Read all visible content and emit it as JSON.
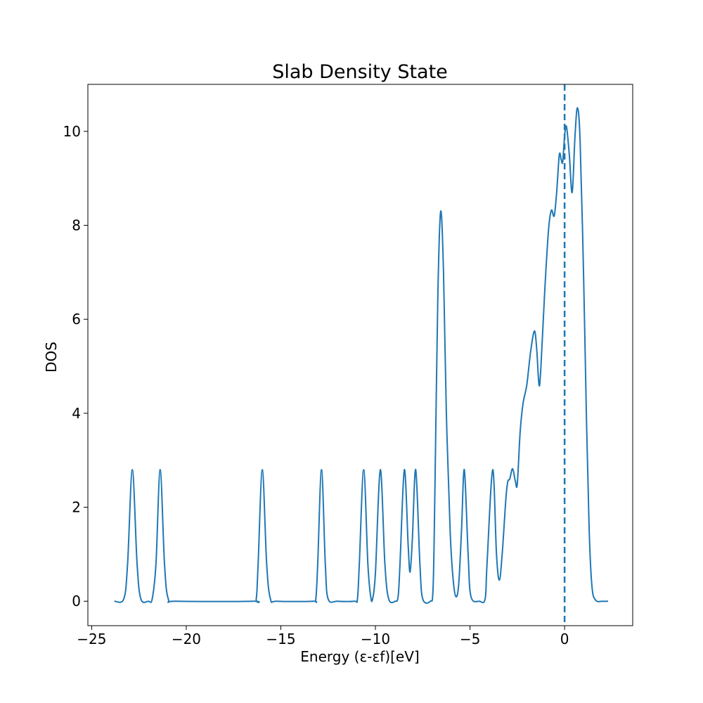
{
  "chart_data": {
    "type": "line",
    "title": "Slab Density State",
    "xlabel": "Energy (ε-εf)[eV]",
    "ylabel": "DOS",
    "xlim": [
      -25.2,
      3.6
    ],
    "ylim": [
      -0.52,
      11.0
    ],
    "x_ticks": [
      -25,
      -20,
      -15,
      -10,
      -5,
      0
    ],
    "x_tick_labels": [
      "−25",
      "−20",
      "−15",
      "−10",
      "−5",
      "0"
    ],
    "y_ticks": [
      0,
      2,
      4,
      6,
      8,
      10
    ],
    "y_tick_labels": [
      "0",
      "2",
      "4",
      "6",
      "8",
      "10"
    ],
    "grid": false,
    "line_color": "#1f77b4",
    "x_range": [
      -23.8,
      2.3
    ],
    "fermi_level_line": {
      "x": 0,
      "style": "dashed",
      "color": "#1f77b4"
    },
    "series": [
      {
        "data": [
          [
            -23.8,
            0.0
          ],
          [
            -23.3,
            0.05
          ],
          [
            -23.1,
            0.8
          ],
          [
            -22.85,
            2.8
          ],
          [
            -22.6,
            0.8
          ],
          [
            -22.4,
            0.05
          ],
          [
            -22.0,
            0.0
          ],
          [
            -21.8,
            0.05
          ],
          [
            -21.6,
            0.8
          ],
          [
            -21.38,
            2.8
          ],
          [
            -21.15,
            0.8
          ],
          [
            -20.95,
            0.05
          ],
          [
            -20.5,
            0.0
          ],
          [
            -16.5,
            0.0
          ],
          [
            -16.3,
            0.05
          ],
          [
            -16.2,
            0.8
          ],
          [
            -15.98,
            2.8
          ],
          [
            -15.75,
            0.8
          ],
          [
            -15.55,
            0.05
          ],
          [
            -15.2,
            0.0
          ],
          [
            -13.3,
            0.0
          ],
          [
            -13.15,
            0.05
          ],
          [
            -13.05,
            0.8
          ],
          [
            -12.85,
            2.8
          ],
          [
            -12.65,
            0.8
          ],
          [
            -12.5,
            0.05
          ],
          [
            -12.0,
            0.0
          ],
          [
            -11.1,
            0.0
          ],
          [
            -10.95,
            0.05
          ],
          [
            -10.85,
            0.8
          ],
          [
            -10.62,
            2.8
          ],
          [
            -10.4,
            0.8
          ],
          [
            -10.25,
            0.1
          ],
          [
            -10.15,
            0.05
          ],
          [
            -10.0,
            0.6
          ],
          [
            -9.74,
            2.8
          ],
          [
            -9.5,
            0.8
          ],
          [
            -9.3,
            0.05
          ],
          [
            -8.95,
            0.0
          ],
          [
            -8.8,
            0.1
          ],
          [
            -8.7,
            0.8
          ],
          [
            -8.47,
            2.8
          ],
          [
            -8.27,
            1.2
          ],
          [
            -8.17,
            0.62
          ],
          [
            -8.05,
            1.3
          ],
          [
            -7.87,
            2.8
          ],
          [
            -7.65,
            0.8
          ],
          [
            -7.5,
            0.05
          ],
          [
            -7.1,
            0.0
          ],
          [
            -6.95,
            0.3
          ],
          [
            -6.85,
            2.5
          ],
          [
            -6.7,
            6.5
          ],
          [
            -6.55,
            8.3
          ],
          [
            -6.4,
            7.0
          ],
          [
            -6.25,
            4.0
          ],
          [
            -6.05,
            1.5
          ],
          [
            -5.9,
            0.5
          ],
          [
            -5.75,
            0.1
          ],
          [
            -5.6,
            0.35
          ],
          [
            -5.45,
            1.5
          ],
          [
            -5.3,
            2.8
          ],
          [
            -5.1,
            1.0
          ],
          [
            -4.95,
            0.1
          ],
          [
            -4.5,
            0.0
          ],
          [
            -4.2,
            0.05
          ],
          [
            -4.1,
            0.8
          ],
          [
            -3.8,
            2.8
          ],
          [
            -3.6,
            1.0
          ],
          [
            -3.45,
            0.45
          ],
          [
            -3.3,
            1.0
          ],
          [
            -3.1,
            2.2
          ],
          [
            -3.0,
            2.55
          ],
          [
            -2.9,
            2.6
          ],
          [
            -2.75,
            2.82
          ],
          [
            -2.6,
            2.55
          ],
          [
            -2.5,
            2.5
          ],
          [
            -2.35,
            3.6
          ],
          [
            -2.2,
            4.2
          ],
          [
            -2.0,
            4.6
          ],
          [
            -1.8,
            5.3
          ],
          [
            -1.6,
            5.75
          ],
          [
            -1.48,
            5.4
          ],
          [
            -1.35,
            4.6
          ],
          [
            -1.25,
            5.0
          ],
          [
            -1.05,
            6.6
          ],
          [
            -0.85,
            7.9
          ],
          [
            -0.7,
            8.32
          ],
          [
            -0.55,
            8.2
          ],
          [
            -0.42,
            8.7
          ],
          [
            -0.28,
            9.5
          ],
          [
            -0.18,
            9.4
          ],
          [
            -0.1,
            9.35
          ],
          [
            0.0,
            9.9
          ],
          [
            0.1,
            10.1
          ],
          [
            0.25,
            9.5
          ],
          [
            0.4,
            8.7
          ],
          [
            0.55,
            9.9
          ],
          [
            0.68,
            10.5
          ],
          [
            0.82,
            9.8
          ],
          [
            1.0,
            7.0
          ],
          [
            1.15,
            4.0
          ],
          [
            1.3,
            1.5
          ],
          [
            1.45,
            0.3
          ],
          [
            1.65,
            0.02
          ],
          [
            2.0,
            0.0
          ],
          [
            2.3,
            0.0
          ]
        ]
      }
    ]
  }
}
